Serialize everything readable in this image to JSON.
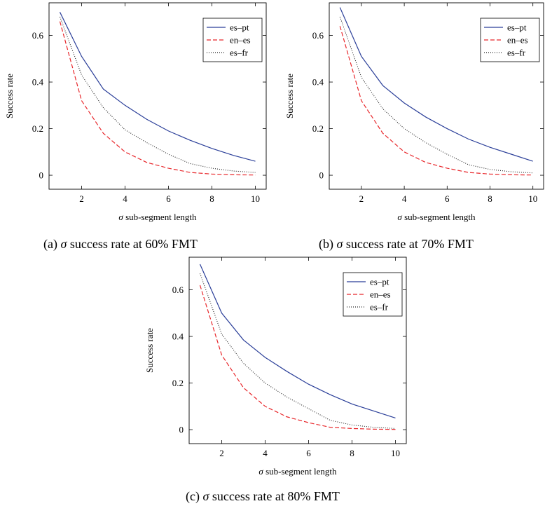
{
  "chart_data": [
    {
      "type": "line",
      "xlabel_symbol": "σ",
      "xlabel": "sub-segment length",
      "ylabel": "Success rate",
      "xlim": [
        0.5,
        10.5
      ],
      "ylim": [
        -0.06,
        0.74
      ],
      "xticks": [
        2,
        4,
        6,
        8,
        10
      ],
      "yticks": [
        0,
        0.2,
        0.4,
        0.6
      ],
      "grid": false,
      "legend_position": "top-right",
      "caption": {
        "prefix": "(a) ",
        "symbol": "σ",
        "text": " success rate at 60% FMT"
      },
      "x": [
        1,
        2,
        3,
        4,
        5,
        6,
        7,
        8,
        9,
        10
      ],
      "series": [
        {
          "name": "es–pt",
          "color": "#2b3f99",
          "style": "solid",
          "values": [
            0.7,
            0.51,
            0.37,
            0.3,
            0.24,
            0.19,
            0.15,
            0.115,
            0.085,
            0.06
          ]
        },
        {
          "name": "en–es",
          "color": "#e8262a",
          "style": "dashed",
          "values": [
            0.66,
            0.32,
            0.18,
            0.1,
            0.055,
            0.03,
            0.012,
            0.005,
            0.002,
            0.001
          ]
        },
        {
          "name": "es–fr",
          "color": "#222222",
          "style": "dotted",
          "values": [
            0.68,
            0.43,
            0.29,
            0.195,
            0.14,
            0.09,
            0.05,
            0.03,
            0.018,
            0.012
          ]
        }
      ]
    },
    {
      "type": "line",
      "xlabel_symbol": "σ",
      "xlabel": "sub-segment length",
      "ylabel": "Success rate",
      "xlim": [
        0.5,
        10.5
      ],
      "ylim": [
        -0.06,
        0.74
      ],
      "xticks": [
        2,
        4,
        6,
        8,
        10
      ],
      "yticks": [
        0,
        0.2,
        0.4,
        0.6
      ],
      "grid": false,
      "legend_position": "top-right",
      "caption": {
        "prefix": "(b) ",
        "symbol": "σ",
        "text": " success rate at 70% FMT"
      },
      "x": [
        1,
        2,
        3,
        4,
        5,
        6,
        7,
        8,
        9,
        10
      ],
      "series": [
        {
          "name": "es–pt",
          "color": "#2b3f99",
          "style": "solid",
          "values": [
            0.72,
            0.51,
            0.385,
            0.31,
            0.25,
            0.2,
            0.155,
            0.12,
            0.09,
            0.06
          ]
        },
        {
          "name": "en–es",
          "color": "#e8262a",
          "style": "dashed",
          "values": [
            0.64,
            0.32,
            0.18,
            0.1,
            0.055,
            0.03,
            0.012,
            0.005,
            0.002,
            0.001
          ]
        },
        {
          "name": "es–fr",
          "color": "#222222",
          "style": "dotted",
          "values": [
            0.68,
            0.42,
            0.285,
            0.2,
            0.14,
            0.09,
            0.045,
            0.025,
            0.015,
            0.01
          ]
        }
      ]
    },
    {
      "type": "line",
      "xlabel_symbol": "σ",
      "xlabel": "sub-segment length",
      "ylabel": "Success rate",
      "xlim": [
        0.5,
        10.5
      ],
      "ylim": [
        -0.06,
        0.74
      ],
      "xticks": [
        2,
        4,
        6,
        8,
        10
      ],
      "yticks": [
        0,
        0.2,
        0.4,
        0.6
      ],
      "grid": false,
      "legend_position": "top-right",
      "caption": {
        "prefix": "(c) ",
        "symbol": "σ",
        "text": " success rate at 80% FMT"
      },
      "x": [
        1,
        2,
        3,
        4,
        5,
        6,
        7,
        8,
        9,
        10
      ],
      "series": [
        {
          "name": "es–pt",
          "color": "#2b3f99",
          "style": "solid",
          "values": [
            0.71,
            0.5,
            0.385,
            0.31,
            0.25,
            0.195,
            0.15,
            0.11,
            0.08,
            0.05
          ]
        },
        {
          "name": "en–es",
          "color": "#e8262a",
          "style": "dashed",
          "values": [
            0.62,
            0.32,
            0.18,
            0.1,
            0.055,
            0.03,
            0.01,
            0.005,
            0.002,
            0.001
          ]
        },
        {
          "name": "es–fr",
          "color": "#222222",
          "style": "dotted",
          "values": [
            0.67,
            0.41,
            0.285,
            0.2,
            0.14,
            0.09,
            0.04,
            0.02,
            0.01,
            0.005
          ]
        }
      ]
    }
  ]
}
